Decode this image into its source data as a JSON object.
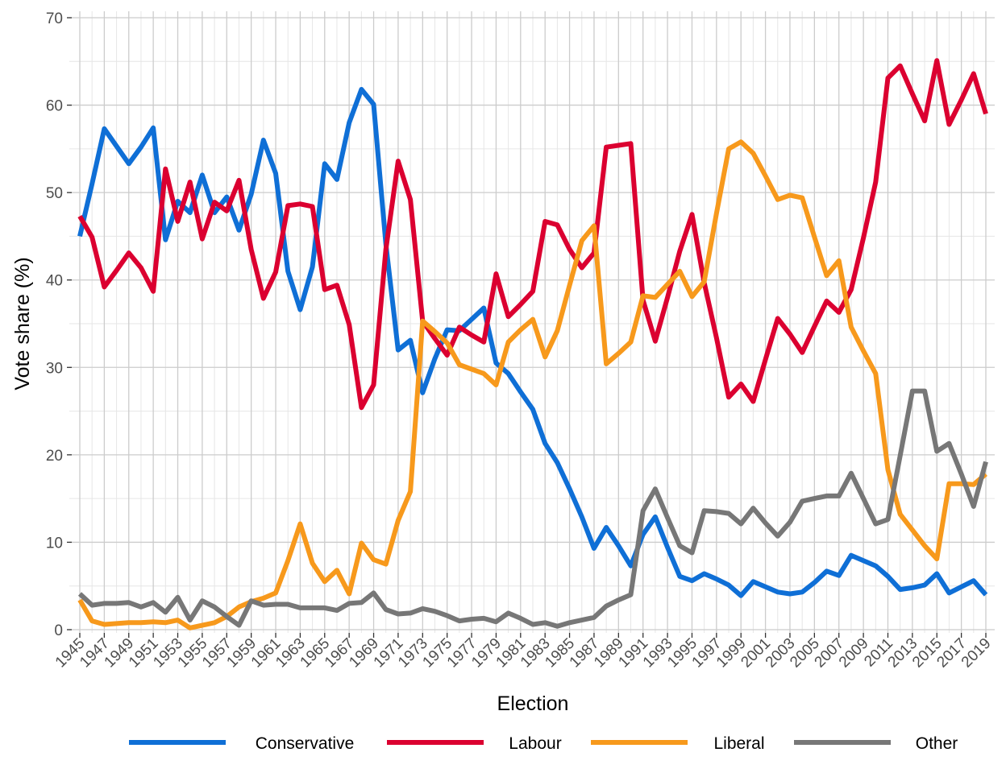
{
  "chart_data": {
    "type": "line",
    "xlabel": "Election",
    "ylabel": "Vote share (%)",
    "xlim": [
      1945,
      2019
    ],
    "ylim": [
      0,
      70
    ],
    "y_ticks": [
      0,
      10,
      20,
      30,
      40,
      50,
      60,
      70
    ],
    "x_ticks": [
      1945,
      1947,
      1949,
      1951,
      1953,
      1955,
      1957,
      1959,
      1961,
      1963,
      1965,
      1967,
      1969,
      1971,
      1973,
      1975,
      1977,
      1979,
      1981,
      1983,
      1985,
      1987,
      1989,
      1991,
      1993,
      1995,
      1997,
      1999,
      2001,
      2003,
      2005,
      2007,
      2009,
      2011,
      2013,
      2015,
      2017,
      2019
    ],
    "grid": true,
    "legend_position": "bottom",
    "series": [
      {
        "name": "Conservative",
        "color": "#0F6FD6",
        "x": [
          1945,
          1946,
          1947,
          1948,
          1949,
          1950,
          1951,
          1952,
          1953,
          1954,
          1955,
          1956,
          1957,
          1958,
          1959,
          1960,
          1961,
          1962,
          1963,
          1964,
          1965,
          1966,
          1967,
          1968,
          1969,
          1970,
          1971,
          1972,
          1973,
          1974,
          1975,
          1976,
          1977,
          1978,
          1979,
          1980,
          1981,
          1982,
          1983,
          1984,
          1985,
          1986,
          1987,
          1988,
          1989,
          1990,
          1991,
          1992,
          1993,
          1994,
          1995,
          1996,
          1997,
          1998,
          1999,
          2000,
          2001,
          2002,
          2003,
          2004,
          2005,
          2006,
          2007,
          2008,
          2009,
          2010,
          2011,
          2012,
          2013,
          2014,
          2015,
          2016,
          2017,
          2018,
          2019
        ],
        "values": [
          45,
          51,
          57.3,
          55.3,
          53.3,
          55.2,
          57.4,
          44.6,
          49,
          47.7,
          52,
          47.7,
          49.5,
          45.7,
          49.8,
          56,
          52.2,
          41,
          36.6,
          41.5,
          53.3,
          51.5,
          58,
          61.8,
          60.1,
          44.1,
          32,
          33.1,
          27.1,
          31,
          34.3,
          34.2,
          35.5,
          36.8,
          30.5,
          29.3,
          27.2,
          25.2,
          21.3,
          19.1,
          16.1,
          12.9,
          9.3,
          11.7,
          9.6,
          7.3,
          10.9,
          12.9,
          9.4,
          6.1,
          5.6,
          6.4,
          5.8,
          5.1,
          3.9,
          5.5,
          4.9,
          4.3,
          4.1,
          4.3,
          5.4,
          6.7,
          6.2,
          8.5,
          7.9,
          7.3,
          6.1,
          4.6,
          4.8,
          5.1,
          6.4,
          4.2,
          4.9,
          5.6,
          4
        ]
      },
      {
        "name": "Labour",
        "color": "#DB0030",
        "x": [
          1945,
          1946,
          1947,
          1948,
          1949,
          1950,
          1951,
          1952,
          1953,
          1954,
          1955,
          1956,
          1957,
          1958,
          1959,
          1960,
          1961,
          1962,
          1963,
          1964,
          1965,
          1966,
          1967,
          1968,
          1969,
          1970,
          1971,
          1972,
          1973,
          1974,
          1975,
          1976,
          1977,
          1978,
          1979,
          1980,
          1981,
          1982,
          1983,
          1984,
          1985,
          1986,
          1987,
          1988,
          1989,
          1990,
          1991,
          1992,
          1993,
          1994,
          1995,
          1996,
          1997,
          1998,
          1999,
          2000,
          2001,
          2002,
          2003,
          2004,
          2005,
          2006,
          2007,
          2008,
          2009,
          2010,
          2011,
          2012,
          2013,
          2014,
          2015,
          2016,
          2017,
          2018,
          2019
        ],
        "values": [
          47.3,
          44.9,
          39.2,
          41.1,
          43.1,
          41.4,
          38.7,
          52.7,
          46.7,
          51.2,
          44.7,
          48.9,
          47.9,
          51.4,
          43.5,
          37.9,
          40.9,
          48.5,
          48.7,
          48.4,
          38.9,
          39.4,
          34.9,
          25.4,
          28,
          43.5,
          53.6,
          49.2,
          35.3,
          33.3,
          31.4,
          34.6,
          33.7,
          32.9,
          40.7,
          35.8,
          37.2,
          38.7,
          46.7,
          46.3,
          43.5,
          41.4,
          43.1,
          55.2,
          55.4,
          55.6,
          37.7,
          33,
          38,
          43.3,
          47.5,
          39.7,
          33.4,
          26.6,
          28.1,
          26.1,
          30.9,
          35.6,
          33.8,
          31.7,
          34.7,
          37.6,
          36.3,
          38.9,
          44.8,
          51.2,
          63.1,
          64.5,
          61.3,
          58.2,
          65.1,
          57.8,
          60.6,
          63.6,
          59
        ]
      },
      {
        "name": "Liberal",
        "color": "#F7991C",
        "x": [
          1945,
          1946,
          1947,
          1948,
          1949,
          1950,
          1951,
          1952,
          1953,
          1954,
          1955,
          1956,
          1957,
          1958,
          1959,
          1960,
          1961,
          1962,
          1963,
          1964,
          1965,
          1966,
          1967,
          1968,
          1969,
          1970,
          1971,
          1972,
          1973,
          1974,
          1975,
          1976,
          1977,
          1978,
          1979,
          1980,
          1981,
          1982,
          1983,
          1984,
          1985,
          1986,
          1987,
          1988,
          1989,
          1990,
          1991,
          1992,
          1993,
          1994,
          1995,
          1996,
          1997,
          1998,
          1999,
          2000,
          2001,
          2002,
          2003,
          2004,
          2005,
          2006,
          2007,
          2008,
          2009,
          2010,
          2011,
          2012,
          2013,
          2014,
          2015,
          2016,
          2017,
          2018,
          2019
        ],
        "values": [
          3.4,
          1,
          0.6,
          0.7,
          0.8,
          0.8,
          0.9,
          0.8,
          1.1,
          0.2,
          0.5,
          0.8,
          1.5,
          2.6,
          3.2,
          3.6,
          4.2,
          7.9,
          12.1,
          7.6,
          5.5,
          6.8,
          4.1,
          9.9,
          8,
          7.5,
          12.5,
          15.8,
          35.3,
          34.1,
          32.8,
          30.3,
          29.8,
          29.3,
          28,
          32.9,
          34.3,
          35.5,
          31.2,
          34.2,
          39.4,
          44.5,
          46.2,
          30.4,
          31.6,
          32.9,
          38.2,
          38,
          39.5,
          41,
          38.1,
          39.8,
          47.6,
          55,
          55.8,
          54.5,
          51.9,
          49.2,
          49.7,
          49.4,
          44.9,
          40.5,
          42.2,
          34.6,
          31.9,
          29.3,
          18.3,
          13.2,
          11.4,
          9.6,
          8.1,
          16.7,
          16.7,
          16.6,
          17.8
        ]
      },
      {
        "name": "Other",
        "color": "#777777",
        "x": [
          1945,
          1946,
          1947,
          1948,
          1949,
          1950,
          1951,
          1952,
          1953,
          1954,
          1955,
          1956,
          1957,
          1958,
          1959,
          1960,
          1961,
          1962,
          1963,
          1964,
          1965,
          1966,
          1967,
          1968,
          1969,
          1970,
          1971,
          1972,
          1973,
          1974,
          1975,
          1976,
          1977,
          1978,
          1979,
          1980,
          1981,
          1982,
          1983,
          1984,
          1985,
          1986,
          1987,
          1988,
          1989,
          1990,
          1991,
          1992,
          1993,
          1994,
          1995,
          1996,
          1997,
          1998,
          1999,
          2000,
          2001,
          2002,
          2003,
          2004,
          2005,
          2006,
          2007,
          2008,
          2009,
          2010,
          2011,
          2012,
          2013,
          2014,
          2015,
          2016,
          2017,
          2018,
          2019
        ],
        "values": [
          4.1,
          2.8,
          3,
          3,
          3.1,
          2.6,
          3.1,
          2,
          3.7,
          1.1,
          3.3,
          2.6,
          1.5,
          0.5,
          3.3,
          2.8,
          2.9,
          2.9,
          2.5,
          2.5,
          2.5,
          2.2,
          3,
          3.1,
          4.2,
          2.3,
          1.8,
          1.9,
          2.4,
          2.1,
          1.6,
          1,
          1.2,
          1.3,
          0.9,
          1.9,
          1.3,
          0.6,
          0.8,
          0.4,
          0.8,
          1.1,
          1.4,
          2.7,
          3.4,
          4,
          13.6,
          16.1,
          12.8,
          9.6,
          8.8,
          13.6,
          13.5,
          13.3,
          12.1,
          13.9,
          12.2,
          10.7,
          12.3,
          14.7,
          15,
          15.3,
          15.3,
          17.9,
          15,
          12.1,
          12.6,
          19.9,
          27.3,
          27.3,
          20.4,
          21.3,
          17.8,
          14.1,
          19.2
        ]
      }
    ]
  }
}
